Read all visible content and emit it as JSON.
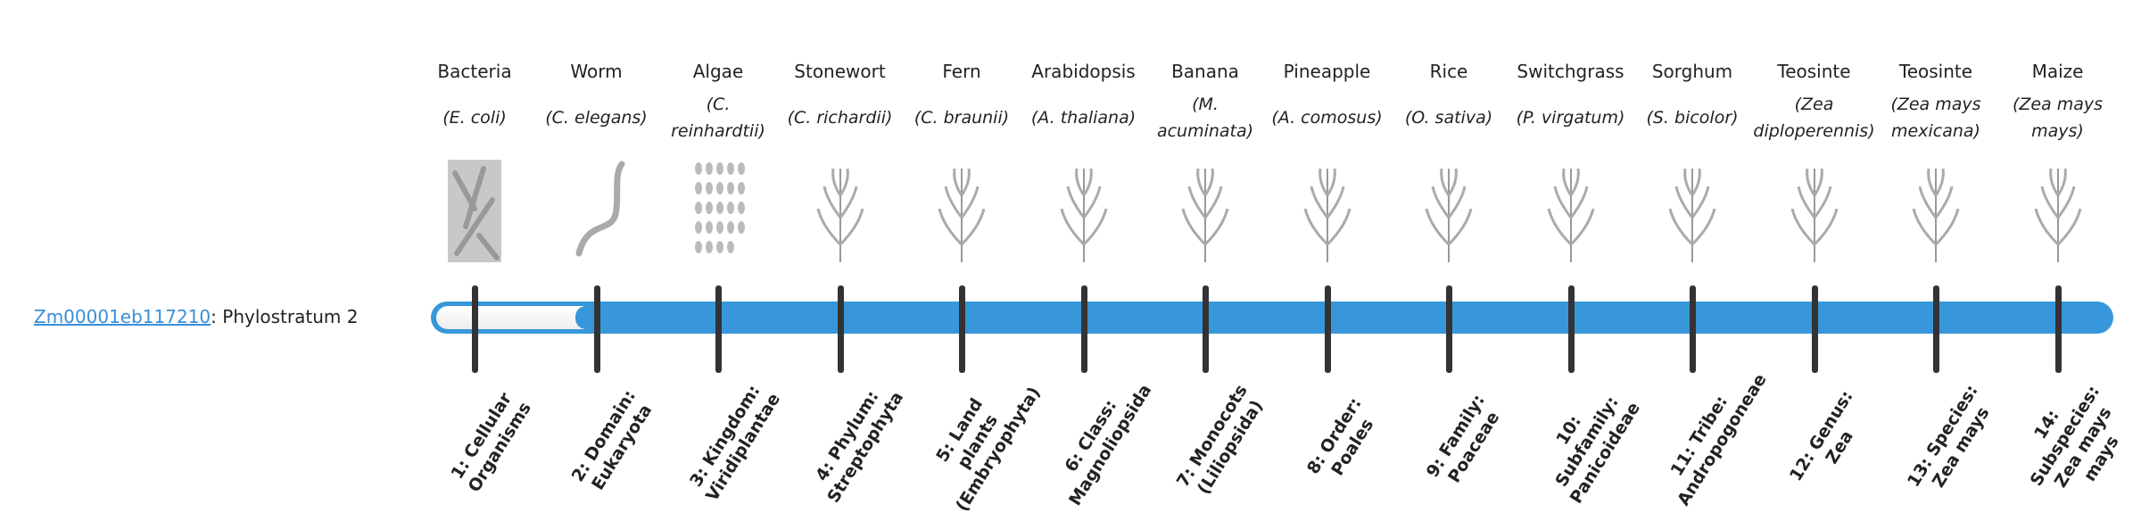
{
  "gene": {
    "id": "Zm00001eb117210",
    "text": ": Phylostratum 2"
  },
  "phylostratum": 2,
  "colors": {
    "bar": "#3797da",
    "tick": "#333333",
    "link": "#3a8ed8"
  },
  "strata": [
    {
      "name": "Bacteria",
      "species": "(E. coli)",
      "label": "1: Cellular Organisms",
      "icon": "bacteria-icon"
    },
    {
      "name": "Worm",
      "species": "(C. elegans)",
      "label": "2: Domain: Eukaryota",
      "icon": "worm-icon"
    },
    {
      "name": "Algae",
      "species": "(C. reinhardtii)",
      "label": "3: Kingdom: Viridiplantae",
      "icon": "algae-icon"
    },
    {
      "name": "Stonewort",
      "species": "(C. richardii)",
      "label": "4: Phylum: Streptophyta",
      "icon": "stonewort-icon"
    },
    {
      "name": "Fern",
      "species": "(C. braunii)",
      "label": "5: Land plants (Embryophyta)",
      "icon": "fern-icon"
    },
    {
      "name": "Arabidopsis",
      "species": "(A. thaliana)",
      "label": "6: Class: Magnoliopsida",
      "icon": "arabidopsis-icon"
    },
    {
      "name": "Banana",
      "species": "(M. acuminata)",
      "label": "7: Monocots (Liliopsida)",
      "icon": "banana-icon"
    },
    {
      "name": "Pineapple",
      "species": "(A. comosus)",
      "label": "8: Order: Poales",
      "icon": "pineapple-icon"
    },
    {
      "name": "Rice",
      "species": "(O. sativa)",
      "label": "9: Family: Poaceae",
      "icon": "rice-icon"
    },
    {
      "name": "Switchgrass",
      "species": "(P. virgatum)",
      "label": "10: Subfamily: Panicoideae",
      "icon": "switchgrass-icon"
    },
    {
      "name": "Sorghum",
      "species": "(S. bicolor)",
      "label": "11: Tribe: Andropogoneae",
      "icon": "sorghum-icon"
    },
    {
      "name": "Teosinte",
      "species": "(Zea diploperennis)",
      "label": "12: Genus: Zea",
      "icon": "teosinte-icon"
    },
    {
      "name": "Teosinte",
      "species": "(Zea mays mexicana)",
      "label": "13: Species: Zea mays",
      "icon": "teosinte-icon"
    },
    {
      "name": "Maize",
      "species": "(Zea mays mays)",
      "label": "14: Subspecies: Zea mays mays",
      "icon": "maize-icon"
    }
  ]
}
